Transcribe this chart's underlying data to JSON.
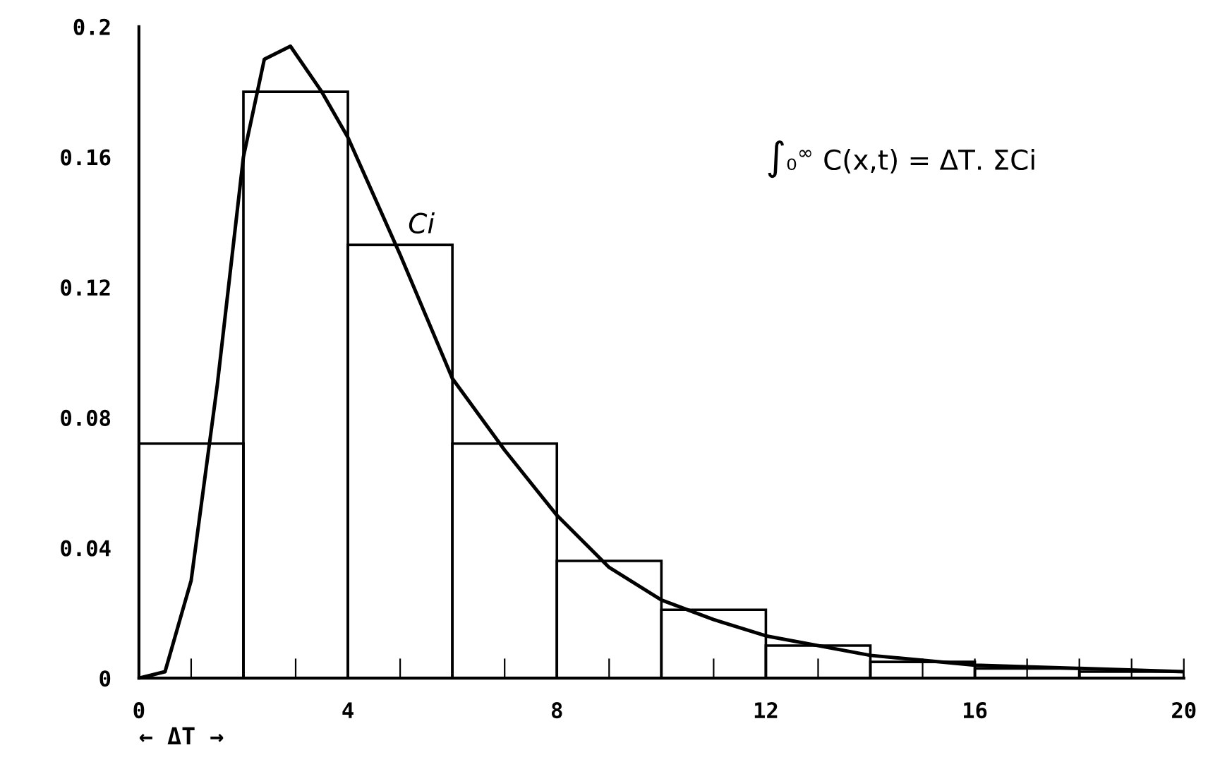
{
  "chart_data": {
    "type": "histogram",
    "xlabel": "← ΔT →",
    "color": "#000000",
    "bins": [
      0,
      2,
      4,
      6,
      8,
      10,
      12,
      14,
      16,
      18,
      20
    ],
    "values": [
      0.072,
      0.18,
      0.133,
      0.072,
      0.036,
      0.021,
      0.01,
      0.005,
      0.003,
      0.002
    ],
    "series": [
      {
        "type": "line",
        "color": "#000000",
        "x": [
          0,
          0.5,
          1,
          1.5,
          2,
          2.4,
          2.9,
          3.5,
          4,
          5,
          6,
          7,
          8,
          9,
          10,
          11,
          12,
          14,
          16,
          18,
          20
        ],
        "values": [
          0,
          0.002,
          0.03,
          0.09,
          0.16,
          0.19,
          0.194,
          0.18,
          0.166,
          0.13,
          0.092,
          0.07,
          0.05,
          0.034,
          0.024,
          0.018,
          0.013,
          0.007,
          0.004,
          0.003,
          0.002
        ]
      }
    ],
    "xlim": [
      0,
      20
    ],
    "ylim": [
      0,
      0.2
    ],
    "xticks": [
      0,
      {
        "value": 1,
        "label": null
      },
      {
        "value": 2,
        "label": null
      },
      {
        "value": 3,
        "label": null
      },
      4,
      {
        "value": 5,
        "label": null
      },
      {
        "value": 6,
        "label": null
      },
      {
        "value": 7,
        "label": null
      },
      8,
      {
        "value": 9,
        "label": null
      },
      {
        "value": 10,
        "label": null
      },
      {
        "value": 11,
        "label": null
      },
      12,
      {
        "value": 13,
        "label": null
      },
      {
        "value": 14,
        "label": null
      },
      {
        "value": 15,
        "label": null
      },
      16,
      {
        "value": 17,
        "label": null
      },
      {
        "value": 18,
        "label": null
      },
      {
        "value": 19,
        "label": null
      },
      20
    ],
    "yticks": [
      0,
      0.04,
      0.08,
      0.12,
      0.16,
      0.2
    ],
    "annotations": [
      {
        "text": "Ci",
        "x": 5,
        "y": 0.133
      },
      "∫₀$^{∞}$ C(x,t) = ΔT. ΣCi"
    ]
  }
}
